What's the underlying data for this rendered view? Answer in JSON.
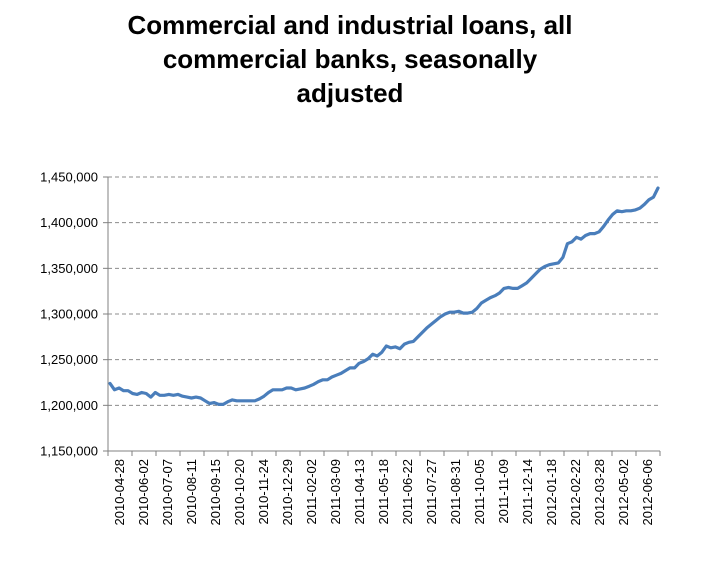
{
  "chart_data": {
    "type": "line",
    "title": "Commercial and industrial loans, all commercial banks, seasonally adjusted",
    "title_lines": [
      "Commercial and industrial loans, all",
      "commercial banks, seasonally",
      "adjusted"
    ],
    "xlabel": "",
    "ylabel": "",
    "ylim": [
      1150000,
      1450000
    ],
    "yticks": [
      1150000,
      1200000,
      1250000,
      1300000,
      1350000,
      1400000,
      1450000
    ],
    "ytick_labels": [
      "1,150,000",
      "1,200,000",
      "1,250,000",
      "1,300,000",
      "1,350,000",
      "1,400,000",
      "1,450,000"
    ],
    "xtick_labels": [
      "2010-04-28",
      "2010-06-02",
      "2010-07-07",
      "2010-08-11",
      "2010-09-15",
      "2010-10-20",
      "2010-11-24",
      "2010-12-29",
      "2011-02-02",
      "2011-03-09",
      "2011-04-13",
      "2011-05-18",
      "2011-06-22",
      "2011-07-27",
      "2011-08-31",
      "2011-10-05",
      "2011-11-09",
      "2011-12-14",
      "2012-01-18",
      "2012-02-22",
      "2012-03-28",
      "2012-05-02",
      "2012-06-06"
    ],
    "grid": "horizontal dashed",
    "legend": "none",
    "line_color": "#4a7ebb",
    "series": [
      {
        "values": [
          1224000,
          1217000,
          1219000,
          1216000,
          1216000,
          1213000,
          1212000,
          1214000,
          1213000,
          1209000,
          1214000,
          1211000,
          1211000,
          1212000,
          1211000,
          1212000,
          1210000,
          1209000,
          1208000,
          1209000,
          1208000,
          1205000,
          1202000,
          1203000,
          1201000,
          1201000,
          1204000,
          1206000,
          1205000,
          1205000,
          1205000,
          1205000,
          1205000,
          1207000,
          1210000,
          1214000,
          1217000,
          1217000,
          1217000,
          1219000,
          1219000,
          1217000,
          1218000,
          1219000,
          1221000,
          1223000,
          1226000,
          1228000,
          1228000,
          1231000,
          1233000,
          1235000,
          1238000,
          1241000,
          1241000,
          1246000,
          1248000,
          1251000,
          1256000,
          1254000,
          1258000,
          1265000,
          1263000,
          1264000,
          1262000,
          1267000,
          1269000,
          1270000,
          1275000,
          1280000,
          1285000,
          1289000,
          1293000,
          1297000,
          1300000,
          1302000,
          1302000,
          1303000,
          1301000,
          1301000,
          1302000,
          1306000,
          1312000,
          1315000,
          1318000,
          1320000,
          1323000,
          1328000,
          1329000,
          1328000,
          1328000,
          1331000,
          1334000,
          1339000,
          1344000,
          1349000,
          1352000,
          1354000,
          1355000,
          1356000,
          1362000,
          1377000,
          1379000,
          1384000,
          1382000,
          1386000,
          1388000,
          1388000,
          1390000,
          1396000,
          1403000,
          1409000,
          1413000,
          1412000,
          1413000,
          1413000,
          1414000,
          1416000,
          1420000,
          1425000,
          1428000,
          1438000
        ]
      }
    ]
  }
}
